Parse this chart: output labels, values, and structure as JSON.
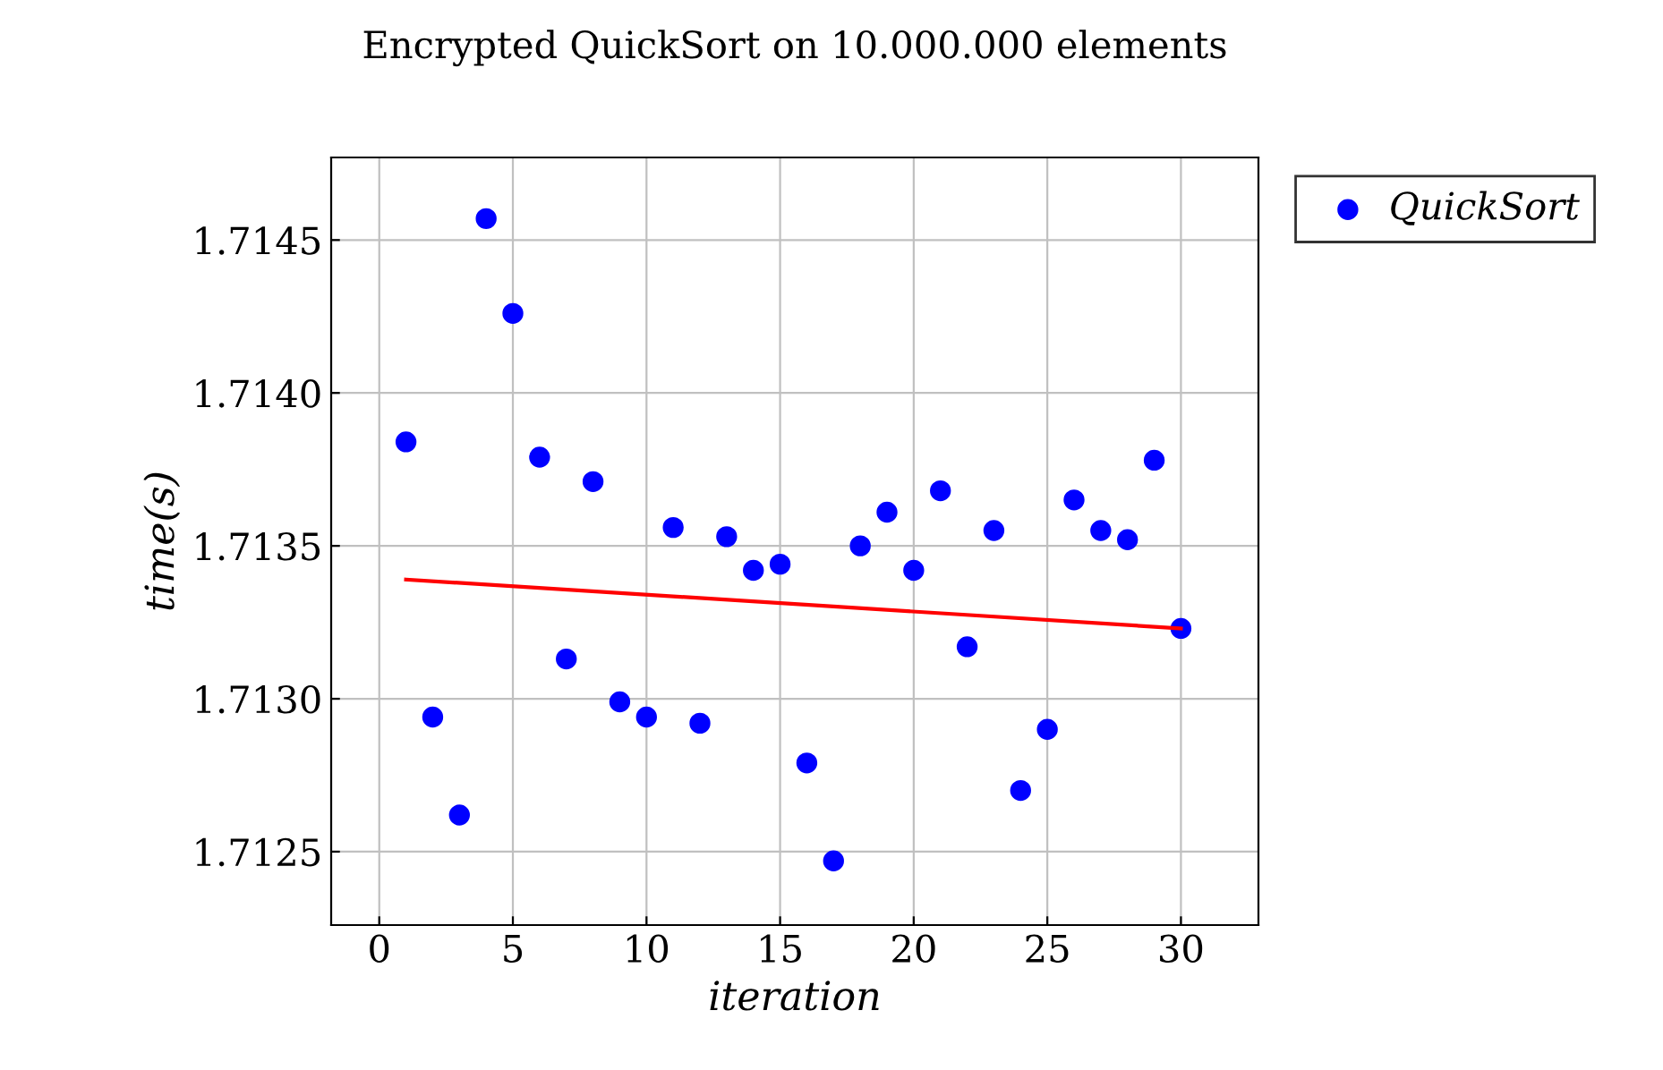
{
  "chart_data": {
    "type": "scatter",
    "title": "Encrypted QuickSort on 10.000.000 elements",
    "xlabel": "iteration",
    "ylabel": "time(s)",
    "xlim": [
      -1.8,
      32.9
    ],
    "ylim": [
      1.71226,
      1.71477
    ],
    "xticks": [
      0,
      5,
      10,
      15,
      20,
      25,
      30
    ],
    "yticks": [
      {
        "value": 1.7125,
        "label": "1.7125"
      },
      {
        "value": 1.713,
        "label": "1.7130"
      },
      {
        "value": 1.7135,
        "label": "1.7135"
      },
      {
        "value": 1.714,
        "label": "1.7140"
      },
      {
        "value": 1.7145,
        "label": "1.7145"
      }
    ],
    "grid": true,
    "legend": "top right",
    "marker": "circle",
    "series": [
      {
        "name": "QuickSort",
        "color": "#0000ff",
        "x": [
          1,
          2,
          3,
          4,
          5,
          6,
          7,
          8,
          9,
          10,
          11,
          12,
          13,
          14,
          15,
          16,
          17,
          18,
          19,
          20,
          21,
          22,
          23,
          24,
          25,
          26,
          27,
          28,
          29,
          30
        ],
        "values": [
          1.71384,
          1.71294,
          1.71262,
          1.71457,
          1.71426,
          1.71379,
          1.71313,
          1.71371,
          1.71299,
          1.71294,
          1.71356,
          1.71292,
          1.71353,
          1.71342,
          1.71344,
          1.71279,
          1.71247,
          1.7135,
          1.71361,
          1.71342,
          1.71368,
          1.71317,
          1.71355,
          1.7127,
          1.7129,
          1.71365,
          1.71355,
          1.71352,
          1.71378,
          1.71323
        ]
      },
      {
        "type": "line",
        "marker": "none",
        "color": "#ff0000",
        "x": [
          1,
          30
        ],
        "values": [
          1.71339,
          1.71323
        ]
      }
    ]
  }
}
